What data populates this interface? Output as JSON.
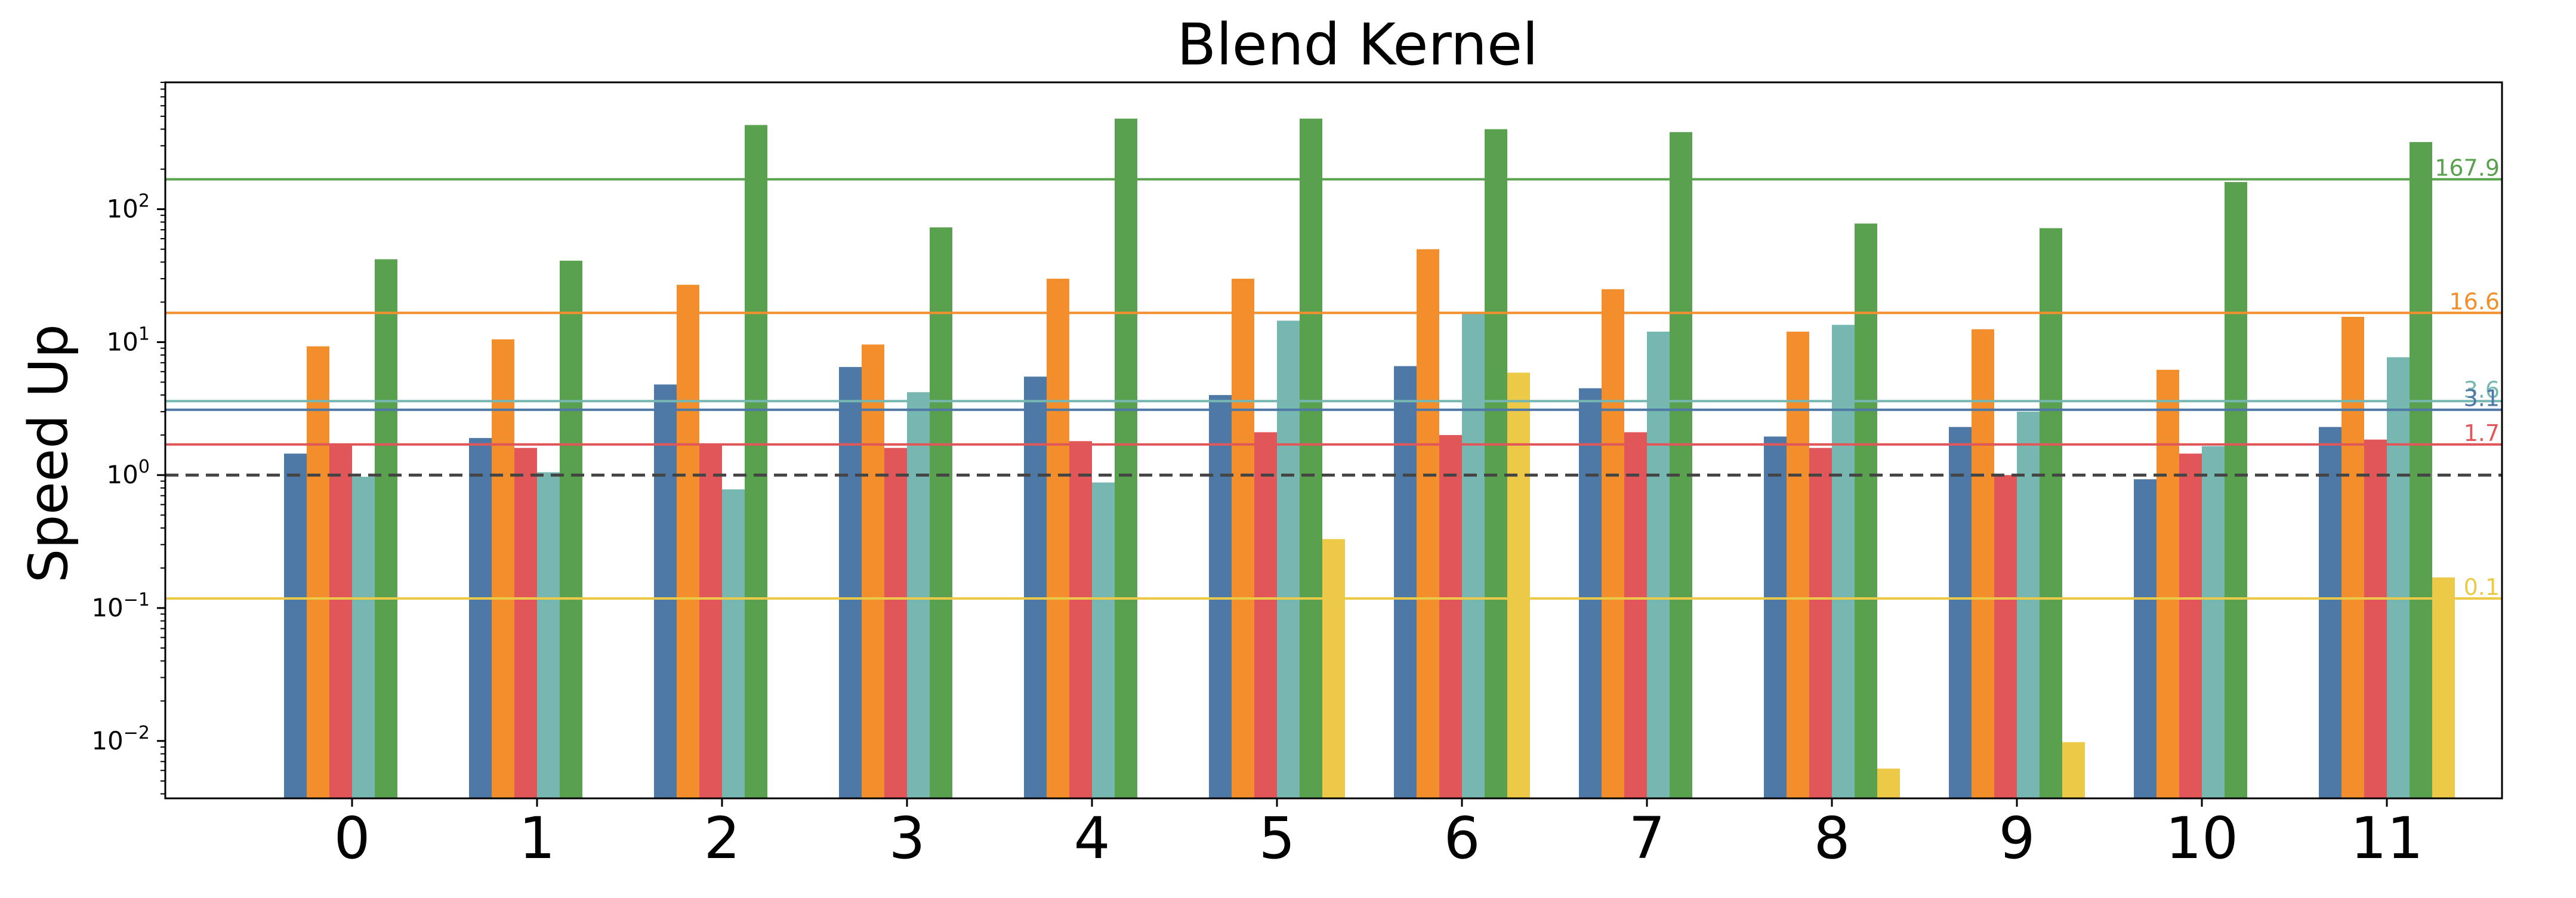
{
  "chart_data": {
    "type": "bar",
    "title": "Blend Kernel",
    "xlabel": "",
    "ylabel": "Speed Up",
    "yscale": "log",
    "ylim": [
      0.0037,
      900
    ],
    "y_ticks": [
      {
        "value": 0.01,
        "base": "10",
        "exp": "−2"
      },
      {
        "value": 0.1,
        "base": "10",
        "exp": "−1"
      },
      {
        "value": 1,
        "base": "10",
        "exp": "0"
      },
      {
        "value": 10,
        "base": "10",
        "exp": "1"
      },
      {
        "value": 100,
        "base": "10",
        "exp": "2"
      }
    ],
    "categories": [
      "0",
      "1",
      "2",
      "3",
      "4",
      "5",
      "6",
      "7",
      "8",
      "9",
      "10",
      "11"
    ],
    "series": [
      {
        "color": "#4e79a7",
        "values": [
          1.45,
          1.9,
          4.8,
          6.5,
          5.5,
          4.0,
          6.6,
          4.5,
          1.95,
          2.3,
          0.93,
          2.3
        ]
      },
      {
        "color": "#f28e2b",
        "values": [
          9.3,
          10.5,
          27,
          9.6,
          30,
          30,
          50,
          25,
          12,
          12.5,
          6.2,
          15.5
        ]
      },
      {
        "color": "#e15759",
        "values": [
          1.7,
          1.6,
          1.7,
          1.6,
          1.8,
          2.1,
          2.0,
          2.1,
          1.6,
          1.0,
          1.45,
          1.85
        ]
      },
      {
        "color": "#76b7b2",
        "values": [
          0.97,
          1.05,
          0.78,
          4.2,
          0.88,
          14.5,
          16.5,
          12,
          13.5,
          3.0,
          1.65,
          7.7
        ]
      },
      {
        "color": "#59a14f",
        "values": [
          42,
          41,
          430,
          73,
          480,
          480,
          400,
          380,
          78,
          72,
          160,
          320
        ]
      },
      {
        "color": "#edc948",
        "values": [
          null,
          null,
          null,
          null,
          null,
          0.33,
          5.9,
          null,
          0.0062,
          0.0098,
          null,
          0.17
        ]
      }
    ],
    "reference_lines": [
      {
        "value": 1.0,
        "color": "#444444",
        "style": "dashed",
        "label": ""
      },
      {
        "value": 167.9,
        "color": "#59a14f",
        "style": "solid",
        "label": "167.9"
      },
      {
        "value": 16.6,
        "color": "#f28e2b",
        "style": "solid",
        "label": "16.6"
      },
      {
        "value": 3.6,
        "color": "#76b7b2",
        "style": "solid",
        "label": "3.6"
      },
      {
        "value": 3.1,
        "color": "#4e79a7",
        "style": "solid",
        "label": "3.1"
      },
      {
        "value": 1.7,
        "color": "#e15759",
        "style": "solid",
        "label": "1.7"
      },
      {
        "value": 0.1,
        "color": "#edc948",
        "style": "solid",
        "label": "0.1",
        "drawn_at": 0.118
      }
    ],
    "grid": false,
    "legend": "none"
  }
}
